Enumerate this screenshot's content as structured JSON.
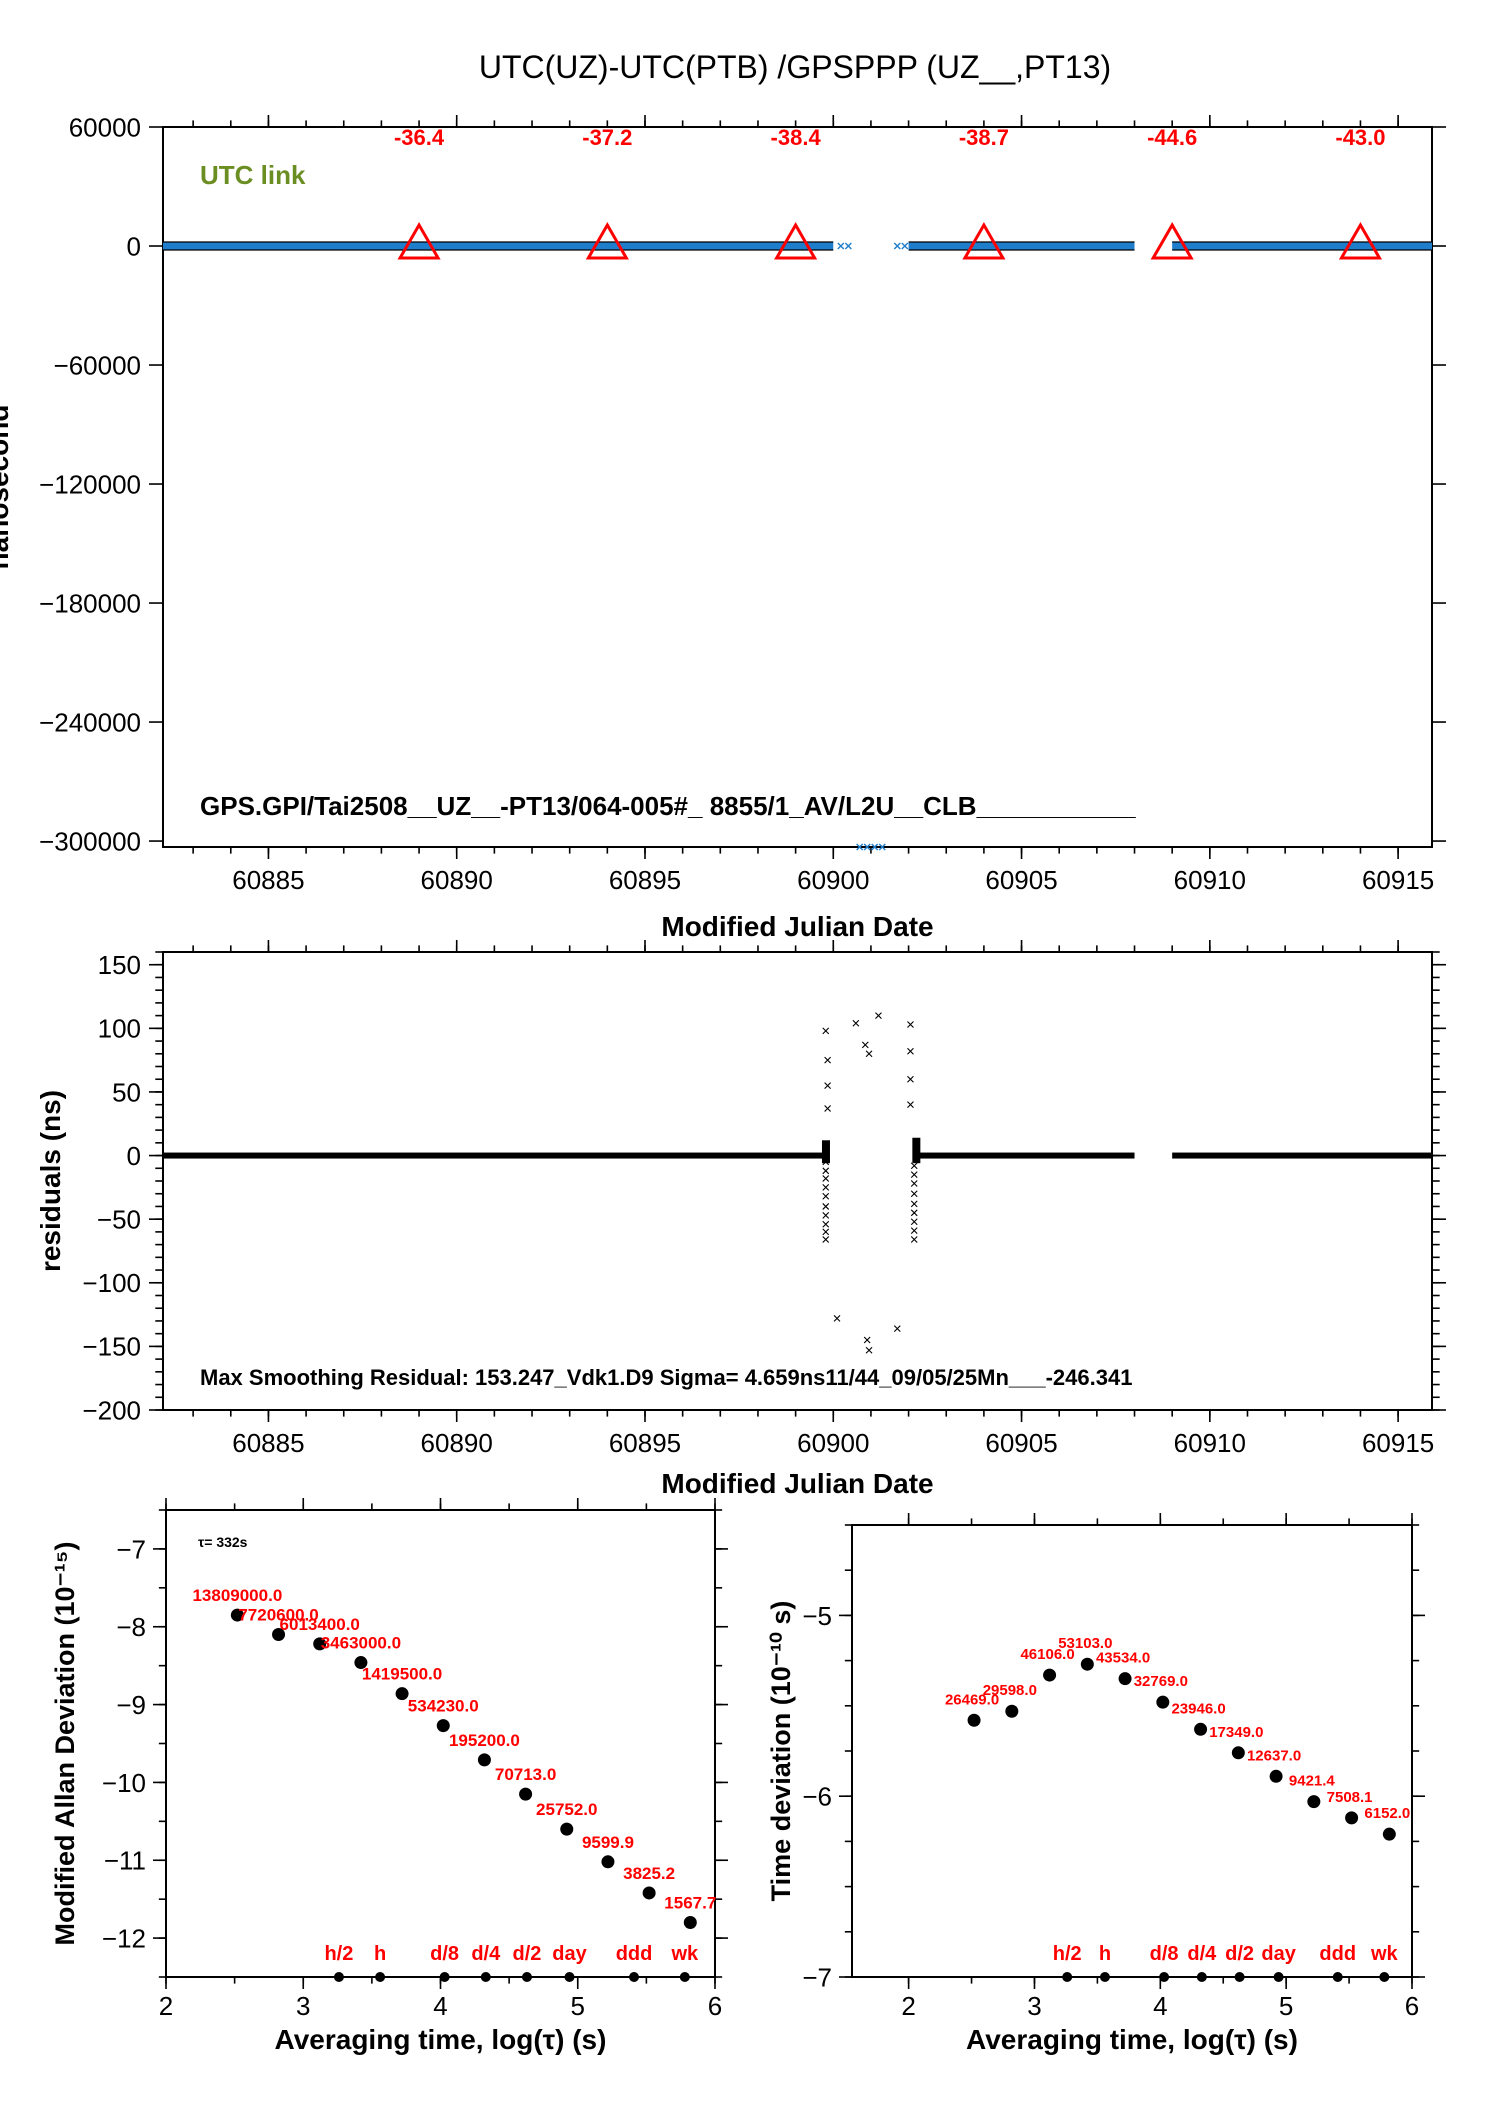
{
  "page": {
    "title": "UTC(UZ)-UTC(PTB)  /GPSPPP  (UZ__,PT13)"
  },
  "colors": {
    "marker": "#ff0000",
    "link_label": "#6b8e23",
    "series_fill": "#1f7ecb",
    "axis": "#000000"
  },
  "chart_data": [
    {
      "id": "link",
      "type": "scatter",
      "title": "UTC(UZ)-UTC(PTB)  /GPSPPP  (UZ__,PT13)",
      "xlabel": "Modified Julian Date",
      "ylabel": "nanosecond",
      "xlim": [
        60882.2,
        60915.9
      ],
      "ylim": [
        -303000,
        60000
      ],
      "xticks": [
        60885,
        60890,
        60895,
        60900,
        60905,
        60910,
        60915
      ],
      "yticks": [
        60000,
        0,
        -60000,
        -120000,
        -180000,
        -240000,
        -300000
      ],
      "ytick_labels": [
        "60000",
        "0",
        "−60000",
        "−120000",
        "−180000",
        "−240000",
        "−300000"
      ],
      "legend": "UTC link",
      "footer": "GPS.GPI/Tai2508__UZ__-PT13/064-005#_  8855/1_AV/L2U__CLB___________",
      "segments": [
        {
          "x": [
            60882.2,
            60900.0
          ],
          "y": 0
        },
        {
          "x": [
            60902.0,
            60908.0
          ],
          "y": 0
        },
        {
          "x": [
            60909.0,
            60915.9
          ],
          "y": 0
        }
      ],
      "sparse_points": [
        {
          "x": 60900.2,
          "y": 0
        },
        {
          "x": 60900.4,
          "y": 0
        },
        {
          "x": 60901.7,
          "y": 0
        },
        {
          "x": 60901.9,
          "y": 0
        },
        {
          "x": 60900.7,
          "y": -303000
        },
        {
          "x": 60900.9,
          "y": -303000
        },
        {
          "x": 60901.1,
          "y": -303000
        },
        {
          "x": 60901.3,
          "y": -303000
        }
      ],
      "markers": [
        {
          "x": 60889,
          "y": 0,
          "label": "-36.4"
        },
        {
          "x": 60894,
          "y": 0,
          "label": "-37.2"
        },
        {
          "x": 60899,
          "y": 0,
          "label": "-38.4"
        },
        {
          "x": 60904,
          "y": 0,
          "label": "-38.7"
        },
        {
          "x": 60909,
          "y": 0,
          "label": "-44.6"
        },
        {
          "x": 60914,
          "y": 0,
          "label": "-43.0"
        }
      ]
    },
    {
      "id": "residuals",
      "type": "scatter",
      "xlabel": "Modified Julian Date",
      "ylabel": "residuals (ns)",
      "xlim": [
        60882.2,
        60915.9
      ],
      "ylim": [
        -200,
        160
      ],
      "xticks": [
        60885,
        60890,
        60895,
        60900,
        60905,
        60910,
        60915
      ],
      "yticks": [
        150,
        100,
        50,
        0,
        -50,
        -100,
        -150,
        -200
      ],
      "ytick_labels": [
        "150",
        "100",
        "50",
        "0",
        "−50",
        "−100",
        "−150",
        "−200"
      ],
      "footer": "Max Smoothing Residual: 153.247_Vdk1.D9  Sigma= 4.659ns11/44_09/05/25Mn___-246.341",
      "segments": [
        {
          "x": [
            60882.2,
            60899.8
          ],
          "y": 0
        },
        {
          "x": [
            60902.2,
            60908.0
          ],
          "y": 0
        },
        {
          "x": [
            60909.0,
            60915.9
          ],
          "y": 0
        }
      ],
      "points": [
        {
          "x": 60899.8,
          "y": 98
        },
        {
          "x": 60899.85,
          "y": 75
        },
        {
          "x": 60899.85,
          "y": 55
        },
        {
          "x": 60899.85,
          "y": 37
        },
        {
          "x": 60899.8,
          "y": -5
        },
        {
          "x": 60899.8,
          "y": -12
        },
        {
          "x": 60899.8,
          "y": -18
        },
        {
          "x": 60899.8,
          "y": -25
        },
        {
          "x": 60899.8,
          "y": -32
        },
        {
          "x": 60899.8,
          "y": -40
        },
        {
          "x": 60899.8,
          "y": -47
        },
        {
          "x": 60899.8,
          "y": -54
        },
        {
          "x": 60899.8,
          "y": -60
        },
        {
          "x": 60899.8,
          "y": -66
        },
        {
          "x": 60900.1,
          "y": -128
        },
        {
          "x": 60900.6,
          "y": 104
        },
        {
          "x": 60900.85,
          "y": 87
        },
        {
          "x": 60900.95,
          "y": 80
        },
        {
          "x": 60900.9,
          "y": -145
        },
        {
          "x": 60900.95,
          "y": -153
        },
        {
          "x": 60901.2,
          "y": 110
        },
        {
          "x": 60901.7,
          "y": -136
        },
        {
          "x": 60902.05,
          "y": 103
        },
        {
          "x": 60902.05,
          "y": 82
        },
        {
          "x": 60902.05,
          "y": 60
        },
        {
          "x": 60902.05,
          "y": 40
        },
        {
          "x": 60902.15,
          "y": -8
        },
        {
          "x": 60902.15,
          "y": -15
        },
        {
          "x": 60902.15,
          "y": -22
        },
        {
          "x": 60902.15,
          "y": -30
        },
        {
          "x": 60902.15,
          "y": -38
        },
        {
          "x": 60902.15,
          "y": -45
        },
        {
          "x": 60902.15,
          "y": -52
        },
        {
          "x": 60902.15,
          "y": -59
        },
        {
          "x": 60902.15,
          "y": -66
        }
      ]
    },
    {
      "id": "mdev",
      "type": "scatter",
      "xlabel": "Averaging time, log(τ) (s)",
      "ylabel": "Modified Allan Deviation (10⁻¹⁵)",
      "annotation": "τ= 332s",
      "xlim": [
        2,
        6
      ],
      "ylim": [
        -12.5,
        -6.5
      ],
      "xticks": [
        2,
        3,
        4,
        5,
        6
      ],
      "yticks": [
        -7,
        -8,
        -9,
        -10,
        -11,
        -12
      ],
      "ytick_labels": [
        "−7",
        "−8",
        "−9",
        "−10",
        "−11",
        "−12"
      ],
      "points": [
        {
          "x": 2.52,
          "y": -7.85,
          "label": "13809000.0"
        },
        {
          "x": 2.82,
          "y": -8.1,
          "label": "7720600.0"
        },
        {
          "x": 3.12,
          "y": -8.22,
          "label": "6013400.0"
        },
        {
          "x": 3.42,
          "y": -8.46,
          "label": "3463000.0"
        },
        {
          "x": 3.72,
          "y": -8.86,
          "label": "1419500.0"
        },
        {
          "x": 4.02,
          "y": -9.27,
          "label": "534230.0"
        },
        {
          "x": 4.32,
          "y": -9.71,
          "label": "195200.0"
        },
        {
          "x": 4.62,
          "y": -10.15,
          "label": "70713.0"
        },
        {
          "x": 4.92,
          "y": -10.6,
          "label": "25752.0"
        },
        {
          "x": 5.22,
          "y": -11.02,
          "label": "9599.9"
        },
        {
          "x": 5.52,
          "y": -11.42,
          "label": "3825.2"
        },
        {
          "x": 5.82,
          "y": -11.8,
          "label": "1567.7"
        }
      ],
      "time_markers": [
        {
          "x": 3.26,
          "label": "h/2"
        },
        {
          "x": 3.56,
          "label": "h"
        },
        {
          "x": 4.03,
          "label": "d/8"
        },
        {
          "x": 4.33,
          "label": "d/4"
        },
        {
          "x": 4.63,
          "label": "d/2"
        },
        {
          "x": 4.94,
          "label": "day"
        },
        {
          "x": 5.41,
          "label": "ddd"
        },
        {
          "x": 5.78,
          "label": "wk"
        }
      ]
    },
    {
      "id": "tdev",
      "type": "scatter",
      "xlabel": "Averaging time, log(τ) (s)",
      "ylabel": "Time deviation (10⁻¹⁰ s)",
      "xlim": [
        1.55,
        6
      ],
      "ylim": [
        -7,
        -4.5
      ],
      "xticks": [
        2,
        3,
        4,
        5,
        6
      ],
      "yticks": [
        -5,
        -6,
        -7
      ],
      "ytick_labels": [
        "−5",
        "−6",
        "−7"
      ],
      "points": [
        {
          "x": 2.52,
          "y": -5.58,
          "label": "26469.0"
        },
        {
          "x": 2.82,
          "y": -5.53,
          "label": "29598.0"
        },
        {
          "x": 3.12,
          "y": -5.33,
          "label": "46106.0"
        },
        {
          "x": 3.42,
          "y": -5.27,
          "label": "53103.0"
        },
        {
          "x": 3.72,
          "y": -5.35,
          "label": "43534.0"
        },
        {
          "x": 4.02,
          "y": -5.48,
          "label": "32769.0"
        },
        {
          "x": 4.32,
          "y": -5.63,
          "label": "23946.0"
        },
        {
          "x": 4.62,
          "y": -5.76,
          "label": "17349.0"
        },
        {
          "x": 4.92,
          "y": -5.89,
          "label": "12637.0"
        },
        {
          "x": 5.22,
          "y": -6.03,
          "label": "9421.4"
        },
        {
          "x": 5.52,
          "y": -6.12,
          "label": "7508.1"
        },
        {
          "x": 5.82,
          "y": -6.21,
          "label": "6152.0"
        }
      ],
      "time_markers": [
        {
          "x": 3.26,
          "label": "h/2"
        },
        {
          "x": 3.56,
          "label": "h"
        },
        {
          "x": 4.03,
          "label": "d/8"
        },
        {
          "x": 4.33,
          "label": "d/4"
        },
        {
          "x": 4.63,
          "label": "d/2"
        },
        {
          "x": 4.94,
          "label": "day"
        },
        {
          "x": 5.41,
          "label": "ddd"
        },
        {
          "x": 5.78,
          "label": "wk"
        }
      ]
    }
  ]
}
